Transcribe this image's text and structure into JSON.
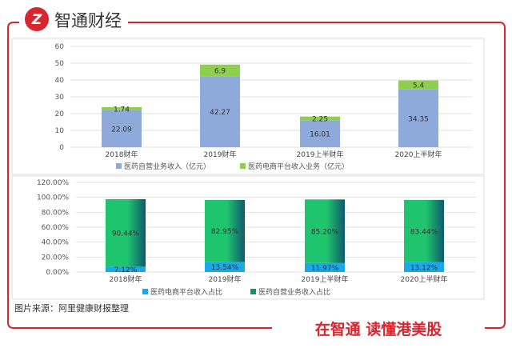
{
  "header": {
    "brand": "智通财经",
    "logo_letter": "Z"
  },
  "footer": {
    "source": "图片来源：阿里健康财报整理",
    "slogan": "在智通 读懂港美股"
  },
  "colors": {
    "frame": "#d7262e",
    "self_revenue": "#8eaadb",
    "platform_revenue": "#8fcf4f",
    "platform_share": "#1aa8e8",
    "self_share_start": "#1fc46e",
    "self_share_end": "#0f5a6e"
  },
  "chart_data": [
    {
      "type": "bar",
      "stacked": true,
      "categories": [
        "2018财年",
        "2019财年",
        "2019上半财年",
        "2020上半财年"
      ],
      "series": [
        {
          "name": "医药自营业务收入（亿元）",
          "values": [
            22.09,
            42.27,
            16.01,
            34.35
          ],
          "labels": [
            "22.09",
            "42.27",
            "16.01",
            "34.35"
          ]
        },
        {
          "name": "医药电商平台收入业务（亿元）",
          "values": [
            1.74,
            6.9,
            2.25,
            5.4
          ],
          "labels": [
            "1.74",
            "6.9",
            "2.25",
            "5.4"
          ]
        }
      ],
      "ylim": [
        0,
        60
      ],
      "yticks": [
        "0",
        "10",
        "20",
        "30",
        "40",
        "50",
        "60"
      ],
      "grid": true,
      "legend": "bottom"
    },
    {
      "type": "bar",
      "stacked": true,
      "categories": [
        "2018财年",
        "2019财年",
        "2019上半财年",
        "2020上半财年"
      ],
      "series": [
        {
          "name": "医药电商平台收入占比",
          "values": [
            7.12,
            13.54,
            11.97,
            13.12
          ],
          "labels": [
            "7.12%",
            "13.54%",
            "11.97%",
            "13.12%"
          ]
        },
        {
          "name": "医药自营业务收入占比",
          "values": [
            90.44,
            82.95,
            85.2,
            83.44
          ],
          "labels": [
            "90.44%",
            "82.95%",
            "85.20%",
            "83.44%"
          ]
        }
      ],
      "ylim": [
        0,
        120
      ],
      "yticks": [
        "0.00%",
        "20.00%",
        "40.00%",
        "60.00%",
        "80.00%",
        "100.00%",
        "120.00%"
      ],
      "grid": true,
      "legend": "bottom"
    }
  ]
}
